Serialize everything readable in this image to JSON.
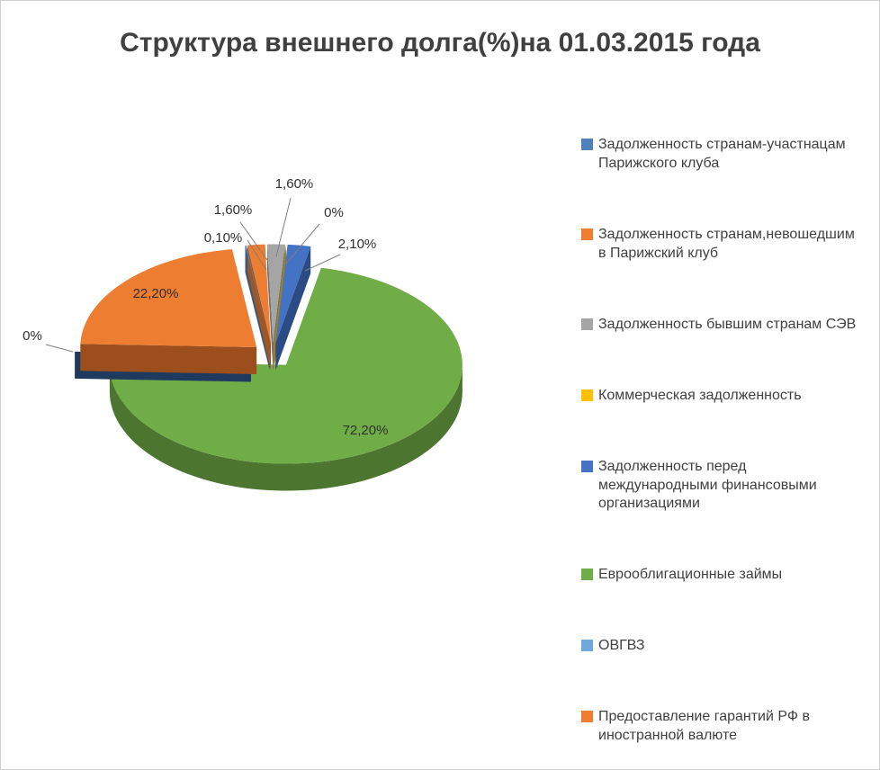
{
  "title": "Структура внешнего долга(%)на 01.03.2015 года",
  "chart_data": {
    "type": "pie",
    "title": "Структура внешнего долга(%)на 01.03.2015 года",
    "unit": "%",
    "style": "3d-exploded-pie",
    "legend_position": "right",
    "slices": [
      {
        "label": "Задолженность странам-участнацам Парижского клуба",
        "value": 0.1,
        "display": "0,10%",
        "color": "#4F81BD",
        "side": "#35587F"
      },
      {
        "label": "Задолженность странам,невошедшим в Парижский клуб",
        "value": 1.6,
        "display": "1,60%",
        "color": "#ED7D31",
        "side": "#A15521"
      },
      {
        "label": "Задолженность бывшим странам СЭВ",
        "value": 1.6,
        "display": "1,60%",
        "color": "#A5A5A5",
        "side": "#6F6F6F"
      },
      {
        "label": "Коммерческая задолженность",
        "value": 0.0,
        "display": "0%",
        "color": "#FFC000",
        "side": "#AD8300"
      },
      {
        "label": "Задолженность перед международными финансовыми организациями",
        "value": 2.1,
        "display": "2,10%",
        "color": "#4472C4",
        "side": "#2C4B84"
      },
      {
        "label": "Еврооблигационные займы",
        "value": 72.2,
        "display": "72,20%",
        "color": "#70AD47",
        "side": "#4C7530"
      },
      {
        "label": "ОВГВЗ",
        "value": 0.0,
        "display": "0%",
        "color": "#6FA8DC",
        "side": "#1F3A5F"
      },
      {
        "label": "Предоставление гарантий РФ в иностранной валюте",
        "value": 22.2,
        "display": "22,20%",
        "color": "#ED7D31",
        "side": "#9C4F1D"
      }
    ]
  }
}
